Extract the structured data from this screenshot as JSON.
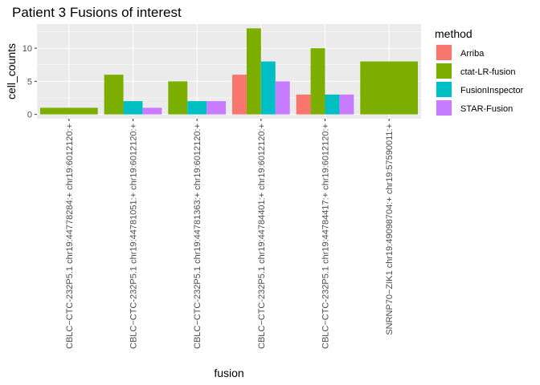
{
  "chart_data": {
    "type": "bar",
    "title": "Patient 3 Fusions of interest",
    "xlabel": "fusion",
    "ylabel": "cell_counts",
    "ylim": [
      -0.65,
      13.65
    ],
    "yticks": [
      0,
      5,
      10
    ],
    "grid": true,
    "legend_position": "right",
    "legend_title": "method",
    "categories": [
      "CBLC−CTC-232P5.1 chr19:44778284:+ chr19:6012120:+",
      "CBLC−CTC-232P5.1 chr19:44781051:+ chr19:6012120:+",
      "CBLC−CTC-232P5.1 chr19:44781363:+ chr19:6012120:+",
      "CBLC−CTC-232P5.1 chr19:44784401:+ chr19:6012120:+",
      "CBLC−CTC-232P5.1 chr19:44784417:+ chr19:6012120:+",
      "SNRNP70−ZIK1 chr19:49098704:+ chr19:57590011:+"
    ],
    "series": [
      {
        "name": "Arriba",
        "color": "#F8766D",
        "values": [
          null,
          null,
          null,
          6,
          3,
          null
        ]
      },
      {
        "name": "ctat-LR-fusion",
        "color": "#7CAE00",
        "values": [
          1,
          6,
          5,
          13,
          10,
          8
        ]
      },
      {
        "name": "FusionInspector",
        "color": "#00BFC4",
        "values": [
          null,
          2,
          2,
          8,
          3,
          null
        ]
      },
      {
        "name": "STAR-Fusion",
        "color": "#C77CFF",
        "values": [
          null,
          1,
          2,
          5,
          3,
          null
        ]
      }
    ]
  }
}
